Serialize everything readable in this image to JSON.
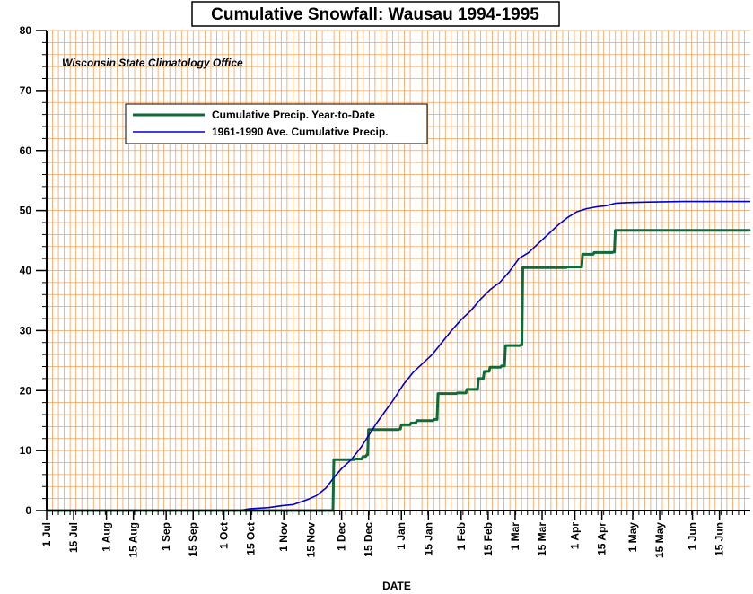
{
  "chart_data": {
    "type": "line",
    "title": "Cumulative Snowfall: Wausau 1994-1995",
    "annotation": "Wisconsin State Climatology Office",
    "xlabel": "DATE",
    "ylabel": "",
    "ylim": [
      0,
      80
    ],
    "y_ticks": [
      0,
      10,
      20,
      30,
      40,
      50,
      60,
      70,
      80
    ],
    "x_domain_days": [
      0,
      365
    ],
    "x_ticks": [
      {
        "label": "1 Jul",
        "day": 0
      },
      {
        "label": "15 Jul",
        "day": 14
      },
      {
        "label": "1 Aug",
        "day": 31
      },
      {
        "label": "15 Aug",
        "day": 45
      },
      {
        "label": "1 Sep",
        "day": 62
      },
      {
        "label": "15 Sep",
        "day": 76
      },
      {
        "label": "1 Oct",
        "day": 92
      },
      {
        "label": "15 Oct",
        "day": 106
      },
      {
        "label": "1 Nov",
        "day": 123
      },
      {
        "label": "15 Nov",
        "day": 137
      },
      {
        "label": "1 Dec",
        "day": 153
      },
      {
        "label": "15 Dec",
        "day": 167
      },
      {
        "label": "1 Jan",
        "day": 184
      },
      {
        "label": "15 Jan",
        "day": 198
      },
      {
        "label": "1 Feb",
        "day": 215
      },
      {
        "label": "15 Feb",
        "day": 229
      },
      {
        "label": "1 Mar",
        "day": 243
      },
      {
        "label": "15 Mar",
        "day": 257
      },
      {
        "label": "1 Apr",
        "day": 274
      },
      {
        "label": "15 Apr",
        "day": 288
      },
      {
        "label": "1 May",
        "day": 304
      },
      {
        "label": "15 May",
        "day": 318
      },
      {
        "label": "1 Jun",
        "day": 335
      },
      {
        "label": "15 Jun",
        "day": 349
      }
    ],
    "grid": true,
    "legend_position": "top-left",
    "series": [
      {
        "name": "Cumulative Precip. Year-to-Date",
        "color": "#0f6b38",
        "step": true,
        "points": [
          [
            0,
            0
          ],
          [
            148,
            0
          ],
          [
            149,
            8.5
          ],
          [
            160,
            8.6
          ],
          [
            164,
            9.0
          ],
          [
            166,
            9.3
          ],
          [
            167,
            13.5
          ],
          [
            183,
            13.6
          ],
          [
            184,
            14.3
          ],
          [
            189,
            14.6
          ],
          [
            192,
            15.0
          ],
          [
            201,
            15.2
          ],
          [
            203,
            19.5
          ],
          [
            213,
            19.6
          ],
          [
            218,
            20.2
          ],
          [
            224,
            22.0
          ],
          [
            227,
            23.2
          ],
          [
            230,
            23.9
          ],
          [
            236,
            24.1
          ],
          [
            238,
            27.5
          ],
          [
            246,
            27.6
          ],
          [
            247,
            40.5
          ],
          [
            270,
            40.6
          ],
          [
            278,
            42.7
          ],
          [
            284,
            43.0
          ],
          [
            294,
            43.1
          ],
          [
            295,
            46.7
          ],
          [
            365,
            46.8
          ]
        ]
      },
      {
        "name": "1961-1990 Ave. Cumulative Precip.",
        "color": "#0000cc",
        "step": false,
        "points": [
          [
            0,
            0
          ],
          [
            100,
            0
          ],
          [
            105,
            0.3
          ],
          [
            115,
            0.5
          ],
          [
            122,
            0.8
          ],
          [
            128,
            1.0
          ],
          [
            135,
            1.8
          ],
          [
            140,
            2.5
          ],
          [
            145,
            3.8
          ],
          [
            149,
            5.5
          ],
          [
            153,
            7.0
          ],
          [
            158,
            8.5
          ],
          [
            163,
            10.5
          ],
          [
            167,
            12.5
          ],
          [
            171,
            14.5
          ],
          [
            175,
            16.3
          ],
          [
            180,
            18.5
          ],
          [
            185,
            21.0
          ],
          [
            190,
            23.0
          ],
          [
            195,
            24.5
          ],
          [
            200,
            26.0
          ],
          [
            205,
            28.0
          ],
          [
            210,
            30.0
          ],
          [
            215,
            31.8
          ],
          [
            220,
            33.3
          ],
          [
            225,
            35.2
          ],
          [
            230,
            36.8
          ],
          [
            235,
            38.0
          ],
          [
            240,
            39.8
          ],
          [
            245,
            42.0
          ],
          [
            250,
            43.0
          ],
          [
            255,
            44.5
          ],
          [
            260,
            46.0
          ],
          [
            265,
            47.5
          ],
          [
            270,
            48.8
          ],
          [
            275,
            49.8
          ],
          [
            280,
            50.3
          ],
          [
            285,
            50.6
          ],
          [
            290,
            50.8
          ],
          [
            295,
            51.2
          ],
          [
            300,
            51.3
          ],
          [
            310,
            51.4
          ],
          [
            330,
            51.5
          ],
          [
            365,
            51.5
          ]
        ]
      }
    ]
  }
}
